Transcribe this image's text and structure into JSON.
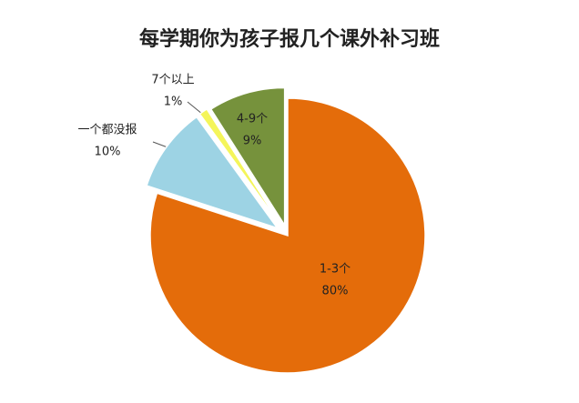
{
  "chart_data": {
    "type": "pie",
    "title": "每学期你为孩子报几个课外补习班",
    "categories": [
      "1-3个",
      "一个都没报",
      "7个以上",
      "4-9个"
    ],
    "values": [
      80,
      10,
      1,
      9
    ],
    "value_labels": [
      "80%",
      "10%",
      "1%",
      "9%"
    ],
    "colors": [
      "#e46c0a",
      "#9dd3e4",
      "#f4f55a",
      "#76923c"
    ]
  }
}
